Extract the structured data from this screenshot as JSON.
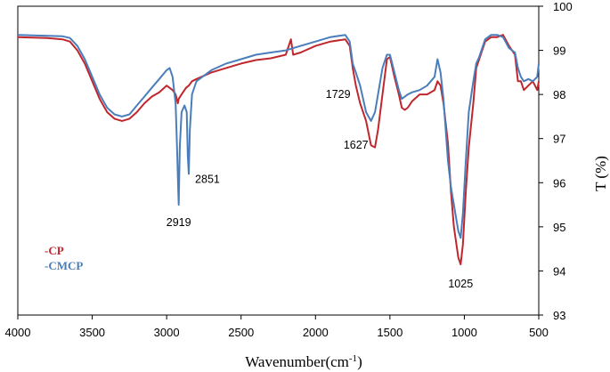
{
  "chart_data": {
    "type": "line",
    "xlabel": "Wavenumber(cm",
    "xlabel_sup": "-1",
    "xlabel_end": ")",
    "ylabel": "T (%)",
    "xlim": [
      4000,
      500
    ],
    "ylim": [
      93,
      100
    ],
    "x_reversed": true,
    "y_axis_side": "right",
    "grid": false,
    "legend_position": "left",
    "x_ticks": [
      "4000",
      "3500",
      "3000",
      "2500",
      "2000",
      "1500",
      "1000",
      "500"
    ],
    "y_ticks": [
      "93",
      "94",
      "95",
      "96",
      "97",
      "98",
      "99",
      "100"
    ],
    "series": [
      {
        "name": "-CP",
        "color": "#c0272d",
        "points": [
          [
            4000,
            99.3
          ],
          [
            3800,
            99.28
          ],
          [
            3700,
            99.25
          ],
          [
            3650,
            99.2
          ],
          [
            3600,
            99.0
          ],
          [
            3550,
            98.7
          ],
          [
            3500,
            98.3
          ],
          [
            3450,
            97.9
          ],
          [
            3400,
            97.6
          ],
          [
            3350,
            97.45
          ],
          [
            3300,
            97.4
          ],
          [
            3250,
            97.45
          ],
          [
            3200,
            97.6
          ],
          [
            3150,
            97.8
          ],
          [
            3100,
            97.95
          ],
          [
            3050,
            98.05
          ],
          [
            3000,
            98.2
          ],
          [
            2960,
            98.1
          ],
          [
            2940,
            98.0
          ],
          [
            2925,
            97.8
          ],
          [
            2919,
            97.9
          ],
          [
            2900,
            98.0
          ],
          [
            2870,
            98.15
          ],
          [
            2851,
            98.2
          ],
          [
            2830,
            98.3
          ],
          [
            2800,
            98.35
          ],
          [
            2700,
            98.5
          ],
          [
            2600,
            98.6
          ],
          [
            2500,
            98.7
          ],
          [
            2400,
            98.78
          ],
          [
            2300,
            98.82
          ],
          [
            2200,
            98.9
          ],
          [
            2165,
            99.25
          ],
          [
            2150,
            98.9
          ],
          [
            2100,
            98.95
          ],
          [
            2000,
            99.1
          ],
          [
            1900,
            99.2
          ],
          [
            1800,
            99.25
          ],
          [
            1770,
            99.1
          ],
          [
            1750,
            98.6
          ],
          [
            1729,
            98.2
          ],
          [
            1700,
            97.8
          ],
          [
            1660,
            97.4
          ],
          [
            1627,
            96.85
          ],
          [
            1600,
            96.8
          ],
          [
            1580,
            97.2
          ],
          [
            1550,
            98.0
          ],
          [
            1520,
            98.8
          ],
          [
            1500,
            98.85
          ],
          [
            1470,
            98.4
          ],
          [
            1440,
            98.0
          ],
          [
            1420,
            97.7
          ],
          [
            1400,
            97.65
          ],
          [
            1380,
            97.7
          ],
          [
            1350,
            97.85
          ],
          [
            1300,
            98.0
          ],
          [
            1250,
            98.0
          ],
          [
            1200,
            98.1
          ],
          [
            1180,
            98.3
          ],
          [
            1160,
            98.2
          ],
          [
            1140,
            97.8
          ],
          [
            1110,
            96.9
          ],
          [
            1090,
            95.8
          ],
          [
            1070,
            95.0
          ],
          [
            1040,
            94.3
          ],
          [
            1025,
            94.15
          ],
          [
            1010,
            94.6
          ],
          [
            990,
            95.8
          ],
          [
            970,
            96.8
          ],
          [
            940,
            97.8
          ],
          [
            920,
            98.6
          ],
          [
            900,
            98.8
          ],
          [
            860,
            99.2
          ],
          [
            820,
            99.3
          ],
          [
            780,
            99.3
          ],
          [
            740,
            99.35
          ],
          [
            700,
            99.1
          ],
          [
            660,
            98.9
          ],
          [
            640,
            98.3
          ],
          [
            620,
            98.3
          ],
          [
            600,
            98.1
          ],
          [
            570,
            98.2
          ],
          [
            540,
            98.3
          ],
          [
            510,
            98.1
          ],
          [
            500,
            98.3
          ]
        ]
      },
      {
        "name": "-CMCP",
        "color": "#4a7ebb",
        "points": [
          [
            4000,
            99.35
          ],
          [
            3800,
            99.33
          ],
          [
            3700,
            99.32
          ],
          [
            3650,
            99.28
          ],
          [
            3600,
            99.1
          ],
          [
            3550,
            98.8
          ],
          [
            3500,
            98.4
          ],
          [
            3450,
            98.0
          ],
          [
            3400,
            97.7
          ],
          [
            3350,
            97.55
          ],
          [
            3300,
            97.5
          ],
          [
            3250,
            97.55
          ],
          [
            3200,
            97.75
          ],
          [
            3150,
            97.95
          ],
          [
            3100,
            98.15
          ],
          [
            3050,
            98.35
          ],
          [
            3000,
            98.55
          ],
          [
            2980,
            98.6
          ],
          [
            2960,
            98.4
          ],
          [
            2940,
            97.8
          ],
          [
            2930,
            96.8
          ],
          [
            2922,
            95.8
          ],
          [
            2919,
            95.5
          ],
          [
            2912,
            96.8
          ],
          [
            2900,
            97.6
          ],
          [
            2880,
            97.75
          ],
          [
            2865,
            97.6
          ],
          [
            2858,
            96.6
          ],
          [
            2851,
            96.2
          ],
          [
            2844,
            97.2
          ],
          [
            2830,
            98.0
          ],
          [
            2800,
            98.3
          ],
          [
            2700,
            98.55
          ],
          [
            2600,
            98.7
          ],
          [
            2500,
            98.8
          ],
          [
            2400,
            98.9
          ],
          [
            2300,
            98.95
          ],
          [
            2200,
            99.0
          ],
          [
            2100,
            99.1
          ],
          [
            2000,
            99.2
          ],
          [
            1900,
            99.3
          ],
          [
            1800,
            99.35
          ],
          [
            1770,
            99.2
          ],
          [
            1750,
            98.7
          ],
          [
            1729,
            98.5
          ],
          [
            1700,
            98.2
          ],
          [
            1660,
            97.6
          ],
          [
            1627,
            97.4
          ],
          [
            1600,
            97.6
          ],
          [
            1580,
            98.0
          ],
          [
            1550,
            98.6
          ],
          [
            1520,
            98.9
          ],
          [
            1500,
            98.9
          ],
          [
            1470,
            98.5
          ],
          [
            1440,
            98.1
          ],
          [
            1420,
            97.9
          ],
          [
            1400,
            97.95
          ],
          [
            1380,
            98.0
          ],
          [
            1350,
            98.05
          ],
          [
            1300,
            98.1
          ],
          [
            1250,
            98.2
          ],
          [
            1200,
            98.4
          ],
          [
            1180,
            98.8
          ],
          [
            1160,
            98.5
          ],
          [
            1140,
            97.9
          ],
          [
            1110,
            96.5
          ],
          [
            1090,
            95.9
          ],
          [
            1070,
            95.5
          ],
          [
            1040,
            94.9
          ],
          [
            1025,
            94.75
          ],
          [
            1010,
            95.3
          ],
          [
            990,
            96.5
          ],
          [
            970,
            97.6
          ],
          [
            940,
            98.3
          ],
          [
            920,
            98.7
          ],
          [
            900,
            98.85
          ],
          [
            860,
            99.25
          ],
          [
            820,
            99.35
          ],
          [
            780,
            99.35
          ],
          [
            740,
            99.3
          ],
          [
            700,
            99.05
          ],
          [
            660,
            98.95
          ],
          [
            640,
            98.6
          ],
          [
            620,
            98.4
          ],
          [
            600,
            98.3
          ],
          [
            570,
            98.35
          ],
          [
            540,
            98.3
          ],
          [
            510,
            98.4
          ],
          [
            500,
            98.7
          ]
        ]
      }
    ],
    "annotations": [
      {
        "text": "2919",
        "x": 2919,
        "y": 95.3
      },
      {
        "text": "2851",
        "x": 2851,
        "y": 96.0
      },
      {
        "text": "1729",
        "x": 1729,
        "y": 98.0
      },
      {
        "text": "1627",
        "x": 1627,
        "y": 96.85
      },
      {
        "text": "1025",
        "x": 1025,
        "y": 93.95
      }
    ]
  }
}
